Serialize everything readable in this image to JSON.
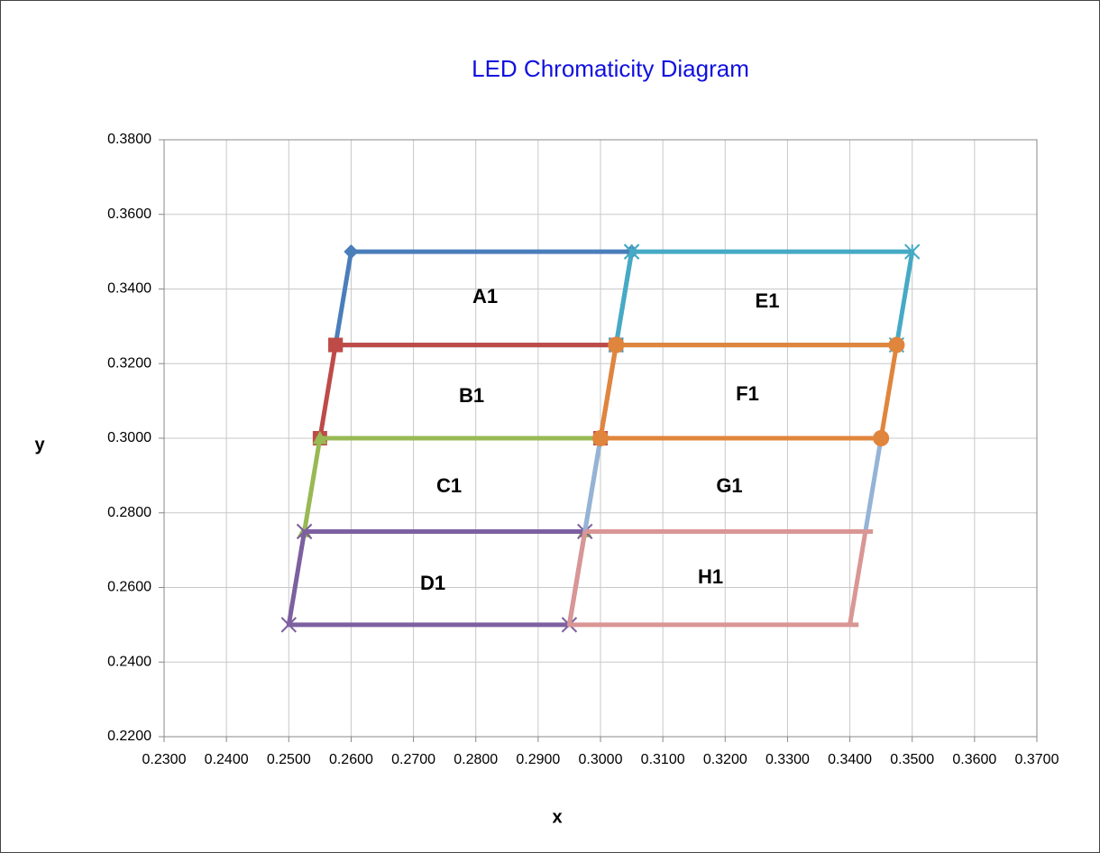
{
  "chart_data": {
    "type": "scatter",
    "title": "LED Chromaticity Diagram",
    "x_label": "x",
    "y_label": "y",
    "xlim": [
      0.23,
      0.37
    ],
    "ylim": [
      0.22,
      0.38
    ],
    "xticks": [
      {
        "value": 0.23,
        "label": "0.2300"
      },
      {
        "value": 0.24,
        "label": "0.2400"
      },
      {
        "value": 0.25,
        "label": "0.2500"
      },
      {
        "value": 0.26,
        "label": "0.2600"
      },
      {
        "value": 0.27,
        "label": "0.2700"
      },
      {
        "value": 0.28,
        "label": "0.2800"
      },
      {
        "value": 0.29,
        "label": "0.2900"
      },
      {
        "value": 0.3,
        "label": "0.3000"
      },
      {
        "value": 0.31,
        "label": "0.3100"
      },
      {
        "value": 0.32,
        "label": "0.3200"
      },
      {
        "value": 0.33,
        "label": "0.3300"
      },
      {
        "value": 0.34,
        "label": "0.3400"
      },
      {
        "value": 0.35,
        "label": "0.3500"
      },
      {
        "value": 0.36,
        "label": "0.3600"
      },
      {
        "value": 0.37,
        "label": "0.3700"
      }
    ],
    "yticks": [
      {
        "value": 0.22,
        "label": "0.2200"
      },
      {
        "value": 0.24,
        "label": "0.2400"
      },
      {
        "value": 0.26,
        "label": "0.2600"
      },
      {
        "value": 0.28,
        "label": "0.2800"
      },
      {
        "value": 0.3,
        "label": "0.3000"
      },
      {
        "value": 0.32,
        "label": "0.3200"
      },
      {
        "value": 0.34,
        "label": "0.3400"
      },
      {
        "value": 0.36,
        "label": "0.3600"
      },
      {
        "value": 0.38,
        "label": "0.3800"
      }
    ],
    "grid": true,
    "annotations": [
      "A1",
      "E1",
      "B1",
      "F1",
      "C1",
      "G1",
      "D1",
      "H1"
    ],
    "series": [
      {
        "color": "#4a7ebb",
        "marker": "diamond",
        "x": [
          0.26,
          0.305,
          0.3025,
          0.2575,
          0.26
        ],
        "y": [
          0.35,
          0.35,
          0.325,
          0.325,
          0.35
        ]
      },
      {
        "color": "#be4b48",
        "marker": "square",
        "x": [
          0.2575,
          0.3025,
          0.3,
          0.255,
          0.2575
        ],
        "y": [
          0.325,
          0.325,
          0.3,
          0.3,
          0.325
        ]
      },
      {
        "color": "#98b954",
        "marker": "triangle",
        "x": [
          0.255,
          0.3,
          0.2975,
          0.2525,
          0.255
        ],
        "y": [
          0.3,
          0.3,
          0.275,
          0.275,
          0.3
        ]
      },
      {
        "color": "#7d60a0",
        "marker": "x",
        "x": [
          0.2525,
          0.2975,
          0.295,
          0.25,
          0.2525
        ],
        "y": [
          0.275,
          0.275,
          0.25,
          0.25,
          0.275
        ]
      },
      {
        "color": "#46aac5",
        "marker": "star",
        "x": [
          0.305,
          0.35,
          0.3475,
          0.3025,
          0.305
        ],
        "y": [
          0.35,
          0.35,
          0.325,
          0.325,
          0.35
        ]
      },
      {
        "color": "#95b3d7",
        "marker": "none",
        "x": [
          0.3,
          0.345,
          0.3425,
          0.2975,
          0.3
        ],
        "y": [
          0.3,
          0.3,
          0.275,
          0.275,
          0.3
        ]
      },
      {
        "color": "#e0853c",
        "marker": "circle",
        "x": [
          0.3025,
          0.3475,
          0.345,
          0.3,
          0.3025
        ],
        "y": [
          0.325,
          0.325,
          0.3,
          0.3,
          0.325
        ]
      },
      {
        "color": "#d99694",
        "marker": "none",
        "x": [
          0.2975,
          0.3437,
          null,
          0.3425,
          0.34,
          0.3414,
          null,
          0.34,
          0.295,
          0.2975
        ],
        "y": [
          0.275,
          0.275,
          null,
          0.275,
          0.25,
          0.25,
          null,
          0.25,
          0.25,
          0.275
        ]
      }
    ]
  }
}
